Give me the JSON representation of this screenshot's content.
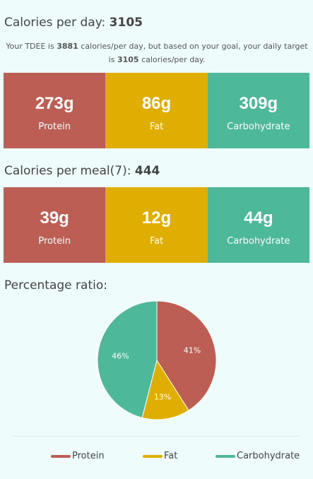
{
  "daily": {
    "heading_label": "Calories per day:",
    "heading_value": "3105",
    "tdee_prefix": "Your TDEE is",
    "tdee_value": "3881",
    "tdee_middle": "calories/per day, but based on your goal, your daily target is",
    "target_value": "3105",
    "target_suffix": "calories/per day.",
    "protein_amount": "273g",
    "protein_label": "Protein",
    "fat_amount": "86g",
    "fat_label": "Fat",
    "carb_amount": "309g",
    "carb_label": "Carbohydrate"
  },
  "meal": {
    "heading_label": "Calories per meal(7):",
    "heading_value": "444",
    "protein_amount": "39g",
    "protein_label": "Protein",
    "fat_amount": "12g",
    "fat_label": "Fat",
    "carb_amount": "44g",
    "carb_label": "Carbohydrate"
  },
  "ratio": {
    "heading_label": "Percentage ratio:"
  },
  "colors": {
    "protein": "#bd5e54",
    "fat": "#e0ae00",
    "carbohydrate": "#4db89a",
    "background": "#eefcfc"
  },
  "chart_data": {
    "type": "pie",
    "categories": [
      "Protein",
      "Fat",
      "Carbohydrate"
    ],
    "values": [
      41,
      13,
      46
    ],
    "labels": [
      "41%",
      "13%",
      "46%"
    ],
    "colors": [
      "#bd5e54",
      "#e0ae00",
      "#4db89a"
    ],
    "legend_position": "bottom"
  }
}
